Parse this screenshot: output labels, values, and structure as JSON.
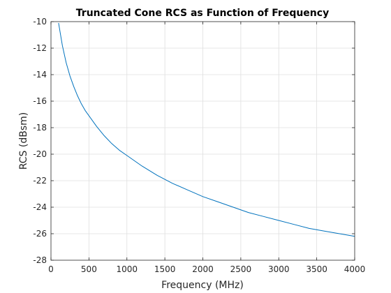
{
  "chart_data": {
    "type": "line",
    "title": "Truncated Cone RCS as Function of Frequency",
    "xlabel": "Frequency (MHz)",
    "ylabel": "RCS (dBsm)",
    "xlim": [
      0,
      4000
    ],
    "ylim": [
      -28,
      -10
    ],
    "xticks": [
      0,
      500,
      1000,
      1500,
      2000,
      2500,
      3000,
      3500,
      4000
    ],
    "yticks": [
      -28,
      -26,
      -24,
      -22,
      -20,
      -18,
      -16,
      -14,
      -12,
      -10
    ],
    "xtick_labels": [
      "0",
      "500",
      "1000",
      "1500",
      "2000",
      "2500",
      "3000",
      "3500",
      "4000"
    ],
    "ytick_labels": [
      "-28",
      "-26",
      "-24",
      "-22",
      "-20",
      "-18",
      "-16",
      "-14",
      "-12",
      "-10"
    ],
    "grid": true,
    "line_color": "#0072BD",
    "series": [
      {
        "x": [
          100,
          150,
          200,
          250,
          300,
          350,
          400,
          450,
          500,
          600,
          700,
          800,
          900,
          1000,
          1200,
          1400,
          1600,
          1800,
          2000,
          2200,
          2400,
          2600,
          2800,
          3000,
          3200,
          3400,
          3600,
          3800,
          4000
        ],
        "values": [
          -10.1,
          -11.8,
          -13.1,
          -14.1,
          -14.9,
          -15.6,
          -16.2,
          -16.7,
          -17.1,
          -17.9,
          -18.6,
          -19.2,
          -19.7,
          -20.1,
          -20.9,
          -21.6,
          -22.2,
          -22.7,
          -23.2,
          -23.6,
          -24.0,
          -24.4,
          -24.7,
          -25.0,
          -25.3,
          -25.6,
          -25.8,
          -26.0,
          -26.2
        ]
      }
    ]
  }
}
